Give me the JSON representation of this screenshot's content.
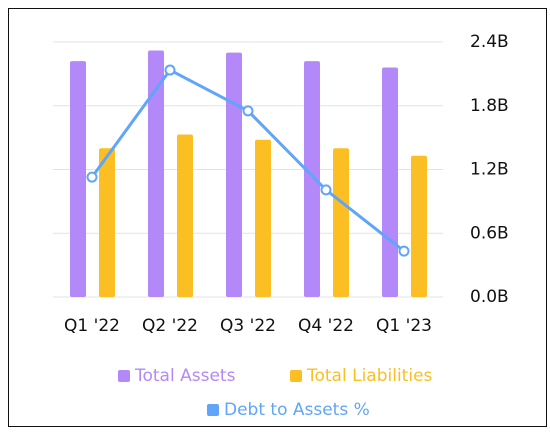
{
  "chart_data": {
    "type": "bar-line",
    "categories": [
      "Q1 '22",
      "Q2 '22",
      "Q3 '22",
      "Q4 '22",
      "Q1 '23"
    ],
    "series": [
      {
        "name": "Total Assets",
        "color": "#b388f8",
        "values": [
          2.22,
          2.32,
          2.3,
          2.22,
          2.16
        ]
      },
      {
        "name": "Total Liabilities",
        "color": "#fbbf24",
        "values": [
          1.4,
          1.53,
          1.48,
          1.4,
          1.33
        ]
      },
      {
        "name": "Debt to Assets %",
        "color": "#60a5fa",
        "axis": "y2",
        "type": "line",
        "values": [
          47,
          89,
          73,
          42,
          18
        ]
      }
    ],
    "ylim": [
      0,
      2.4
    ],
    "yticks": [
      {
        "value": 0,
        "label": "0.0B"
      },
      {
        "value": 0.6,
        "label": "0.6B"
      },
      {
        "value": 1.2,
        "label": "1.2B"
      },
      {
        "value": 1.8,
        "label": "1.8B"
      },
      {
        "value": 2.4,
        "label": "2.4B"
      }
    ],
    "y2lim": [
      0,
      100
    ],
    "grid": true,
    "legend": "bottom"
  }
}
